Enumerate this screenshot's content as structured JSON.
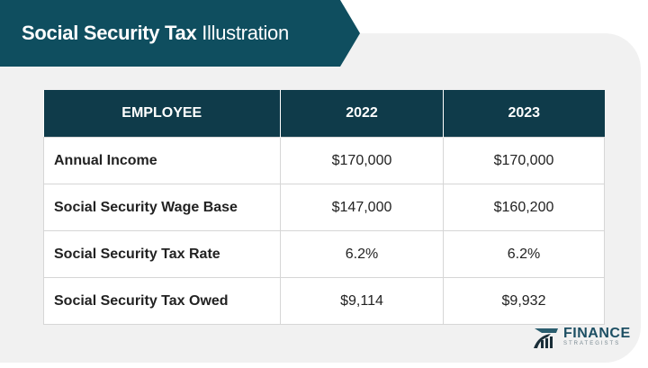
{
  "title": {
    "bold": "Social Security Tax",
    "light": "Illustration"
  },
  "table": {
    "headers": [
      "EMPLOYEE",
      "2022",
      "2023"
    ],
    "rows": [
      [
        "Annual Income",
        "$170,000",
        "$170,000"
      ],
      [
        "Social Security Wage Base",
        "$147,000",
        "$160,200"
      ],
      [
        "Social Security Tax Rate",
        "6.2%",
        "6.2%"
      ],
      [
        "Social Security Tax Owed",
        "$9,114",
        "$9,932"
      ]
    ]
  },
  "logo": {
    "line1": "FINANCE",
    "line2": "STRATEGISTS"
  },
  "colors": {
    "banner": "#0f4e5f",
    "header": "#0f3b4a",
    "panel": "#f1f1f1"
  }
}
